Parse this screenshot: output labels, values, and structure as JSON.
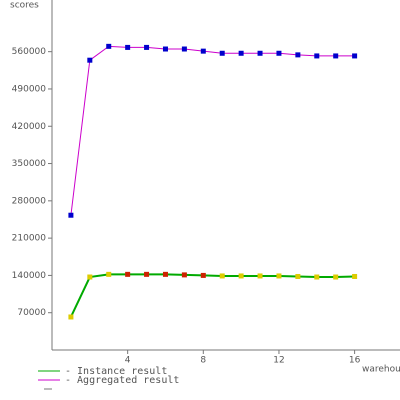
{
  "chart_data": {
    "type": "line",
    "ylabel": "scores",
    "xlabel": "warehouses",
    "x": [
      1,
      2,
      3,
      4,
      5,
      6,
      7,
      8,
      9,
      10,
      11,
      12,
      13,
      14,
      15,
      16
    ],
    "series": [
      {
        "name": "- Instance result",
        "color": "#00aa00",
        "marker_colors": [
          "#ddcc00",
          "#ddcc00",
          "#ddcc00",
          "#cc2200",
          "#cc2200",
          "#cc2200",
          "#cc2200",
          "#cc2200",
          "#ddcc00",
          "#ddcc00",
          "#ddcc00",
          "#ddcc00",
          "#ddcc00",
          "#ddcc00",
          "#ddcc00",
          "#ddcc00"
        ],
        "values": [
          62000,
          137000,
          142000,
          142000,
          142000,
          142000,
          141000,
          140000,
          139000,
          139000,
          139000,
          139000,
          138000,
          137000,
          137000,
          138000
        ]
      },
      {
        "name": "- Aggregated result",
        "color": "#cc00cc",
        "marker_colors": [
          "#0000cc",
          "#0000cc",
          "#0000cc",
          "#0000cc",
          "#0000cc",
          "#0000cc",
          "#0000cc",
          "#0000cc",
          "#0000cc",
          "#0000cc",
          "#0000cc",
          "#0000cc",
          "#0000cc",
          "#0000cc",
          "#0000cc",
          "#0000cc"
        ],
        "values": [
          253000,
          544000,
          570000,
          568000,
          568000,
          565000,
          565000,
          561000,
          557000,
          557000,
          557000,
          557000,
          554000,
          552000,
          552000,
          552000
        ]
      }
    ],
    "xlim": [
      0,
      18.4
    ],
    "xticks": [
      4,
      8,
      12,
      16
    ],
    "ylim": [
      0,
      657000
    ],
    "yticks": [
      70000,
      140000,
      210000,
      280000,
      350000,
      420000,
      490000,
      560000
    ]
  }
}
